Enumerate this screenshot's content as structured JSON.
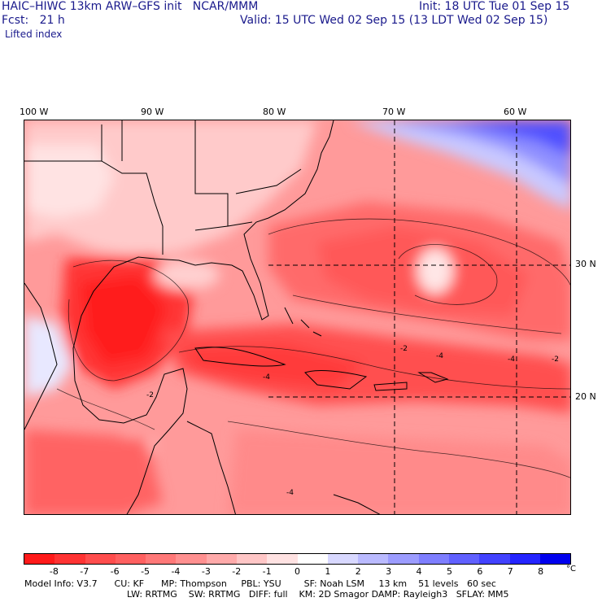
{
  "header": {
    "model_line": "HAIC–HIWC 13km ARW–GFS init   NCAR/MMM",
    "init_line": "Init: 18 UTC Tue 01 Sep 15",
    "fcst_line": "Fcst:   21 h",
    "valid_line": "Valid: 15 UTC Wed 02 Sep 15 (13 LDT Wed 02 Sep 15)",
    "field_name": "Lifted index"
  },
  "map": {
    "longitude_labels": [
      "100 W",
      "90 W",
      "80 W",
      "70 W",
      "60 W"
    ],
    "latitude_labels": [
      "30 N",
      "20 N"
    ],
    "contour_labels": [
      "-2",
      "-4",
      "-4",
      "-2",
      "-4",
      "-2",
      "-4"
    ]
  },
  "colorbar": {
    "labels": [
      "-8",
      "-7",
      "-6",
      "-5",
      "-4",
      "-3",
      "-2",
      "-1",
      "0",
      "1",
      "2",
      "3",
      "4",
      "5",
      "6",
      "7",
      "8"
    ],
    "unit": "°C",
    "colors": [
      "#ff1a1a",
      "#ff3333",
      "#ff4d4d",
      "#ff6060",
      "#ff7878",
      "#ff9090",
      "#ffaaaa",
      "#ffc6c6",
      "#ffe2e2",
      "#ffffff",
      "#d8d8ff",
      "#babaff",
      "#9c9cff",
      "#7e7eff",
      "#6060ff",
      "#4242ff",
      "#2424ff",
      "#0000ee"
    ]
  },
  "model_info": {
    "line1": "Model Info: V3.7      CU: KF      MP: Thompson     PBL: YSU        SF: Noah LSM     13 km    51 levels   60 sec",
    "line2": "LW: RRTMG    SW: RRTMG   DIFF: full    KM: 2D Smagor DAMP: Rayleigh3   SFLAY: MM5"
  }
}
